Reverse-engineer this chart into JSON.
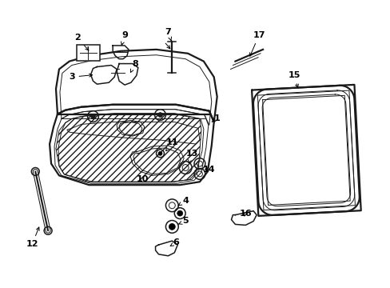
{
  "bg_color": "#ffffff",
  "line_color": "#1a1a1a",
  "fig_width": 4.89,
  "fig_height": 3.6,
  "dpi": 100,
  "label_fontsize": 8.0,
  "label_fontweight": "bold"
}
